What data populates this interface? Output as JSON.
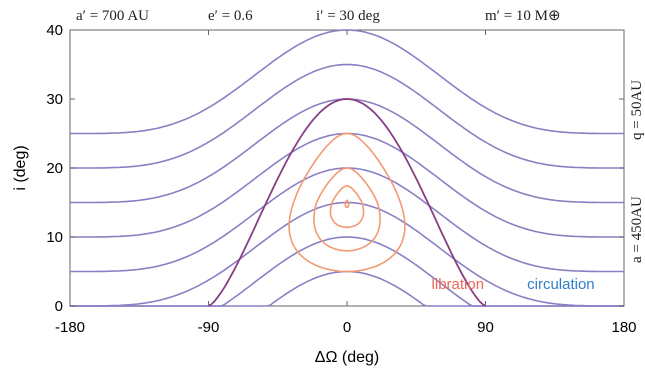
{
  "chart_data": {
    "type": "line",
    "title": "",
    "xlabel": "ΔΩ (deg)",
    "ylabel": "i (deg)",
    "xlim": [
      -180,
      180
    ],
    "ylim": [
      0,
      40
    ],
    "x_ticks": [
      "-180",
      "-90",
      "0",
      "90",
      "180"
    ],
    "y_ticks": [
      "0",
      "10",
      "20",
      "30",
      "40"
    ],
    "top_labels": [
      "a′ = 700 AU",
      "e′ = 0.6",
      "i′ = 30 deg",
      "m′ = 10 M⊕"
    ],
    "right_labels": [
      "q = 50AU",
      "a = 450AU"
    ],
    "annotations": [
      {
        "text": "libration",
        "x": 72,
        "y": 2.5,
        "color": "#f0645a"
      },
      {
        "text": "circulation",
        "x": 139,
        "y": 2.5,
        "color": "#2f7fc8"
      }
    ],
    "colors": {
      "circulation": "#8b7fc4",
      "separatrix": "#873f83",
      "libration": "#f39a73"
    },
    "separatrix": {
      "crossing_x": [
        -90,
        90
      ],
      "peak_y": 30
    },
    "circulation_peaks": [
      40,
      35,
      30,
      25,
      20,
      15,
      10,
      5
    ],
    "libration_centre": {
      "x": 0,
      "y": 14.8
    },
    "libration_contours": [
      {
        "left_x": -35,
        "right_x": 35,
        "top_y": 25,
        "bottom_y": 5
      },
      {
        "left_x": -20,
        "right_x": 20,
        "top_y": 20,
        "bottom_y": 8
      },
      {
        "left_x": -10,
        "right_x": 10,
        "top_y": 17.4,
        "bottom_y": 11.4
      },
      {
        "left_x": -1,
        "right_x": 1,
        "top_y": 15.3,
        "bottom_y": 14.3
      }
    ]
  }
}
